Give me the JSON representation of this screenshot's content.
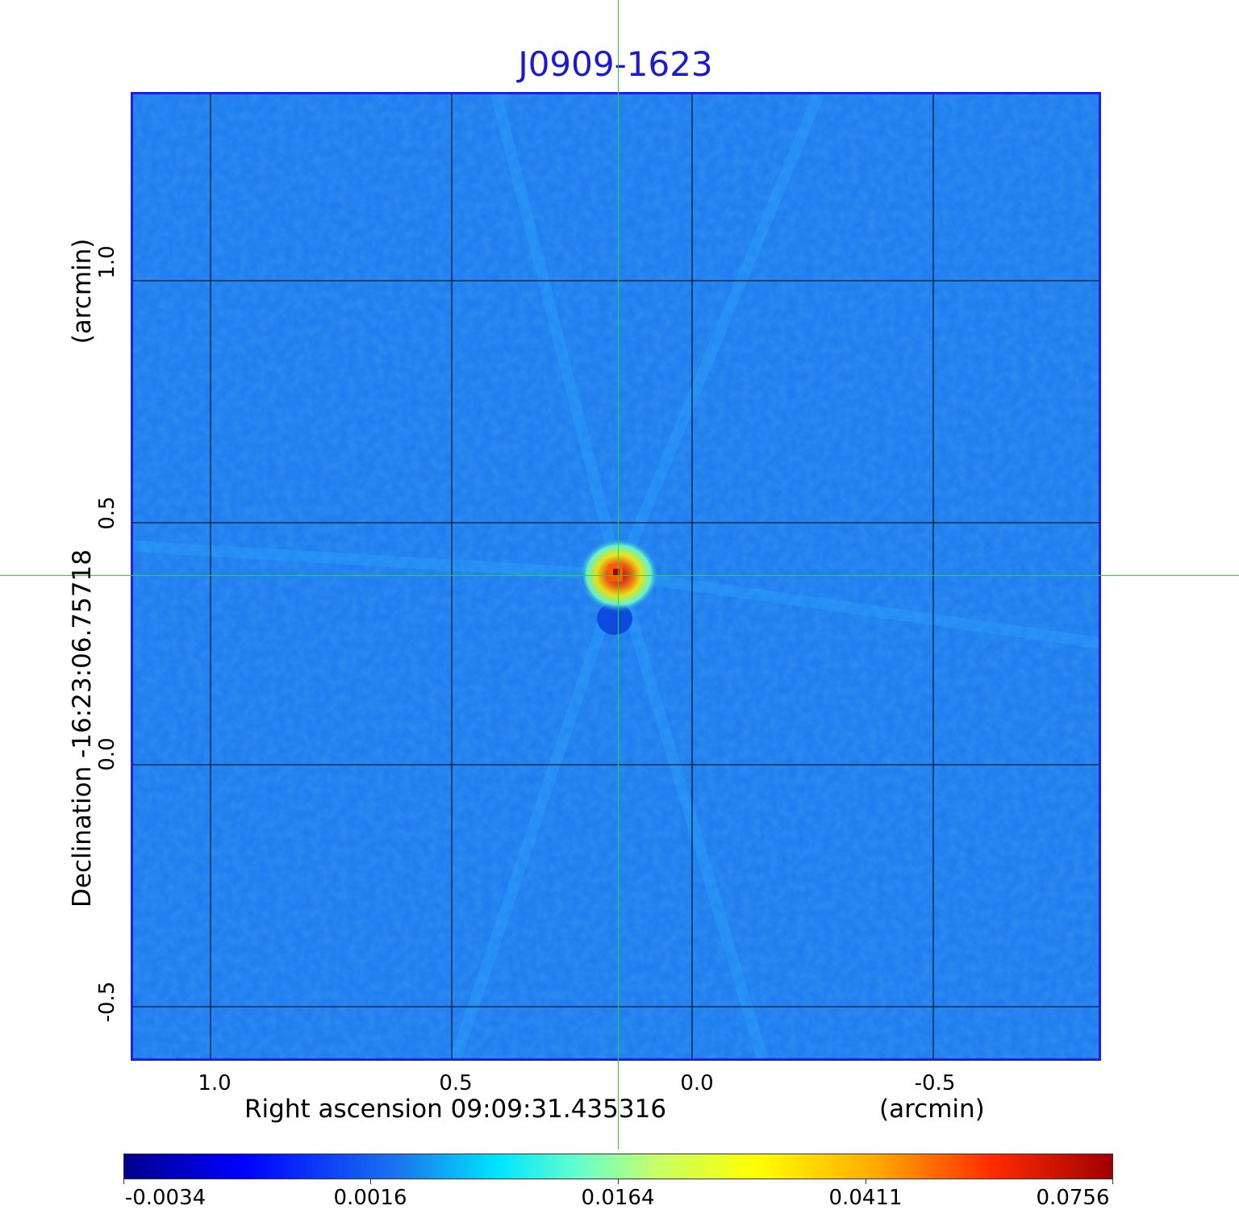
{
  "title": "J0909-1623",
  "x_axis": {
    "label": "Right ascension  09:09:31.435316",
    "unit": "(arcmin)",
    "ticks": [
      "1.0",
      "0.5",
      "0.0",
      "-0.5"
    ]
  },
  "y_axis": {
    "label": "Declination  -16:23:06.75718",
    "unit": "(arcmin)",
    "ticks": [
      "1.0",
      "0.5",
      "0.0",
      "-0.5"
    ]
  },
  "colorbar": {
    "ticks": [
      "-0.0034",
      "0.0016",
      "0.0164",
      "0.0411",
      "0.0756"
    ]
  },
  "colors": {
    "background_map": "#1a78ee",
    "title": "#1a1ad0",
    "frame": "#2020e0",
    "crosshair": "#22dd22",
    "grid": "#000000"
  },
  "image_description_features": {
    "source": "compact bright source with red/yellow peak near center",
    "colormap": "jet"
  }
}
